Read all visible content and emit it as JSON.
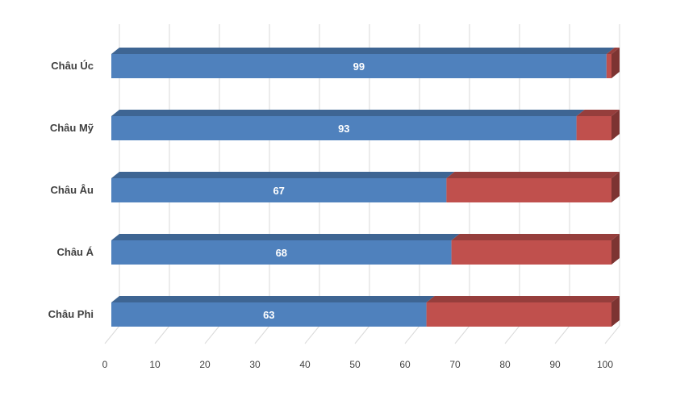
{
  "chart_data": {
    "type": "bar",
    "orientation": "horizontal",
    "stacked": "100%",
    "style": "3d",
    "categories": [
      "Châu Úc",
      "Châu Mỹ",
      "Châu Âu",
      "Châu Á",
      "Châu Phi"
    ],
    "series": [
      {
        "values": [
          99,
          93,
          67,
          68,
          63
        ],
        "color": "#4f81bd",
        "data_labels": true
      },
      {
        "values": [
          1,
          7,
          33,
          32,
          37
        ],
        "color": "#c0504d",
        "data_labels": false
      }
    ],
    "xlim": [
      0,
      100
    ],
    "ticks": [
      0,
      10,
      20,
      30,
      40,
      50,
      60,
      70,
      80,
      90,
      100
    ],
    "grid": true,
    "legend": "none"
  }
}
